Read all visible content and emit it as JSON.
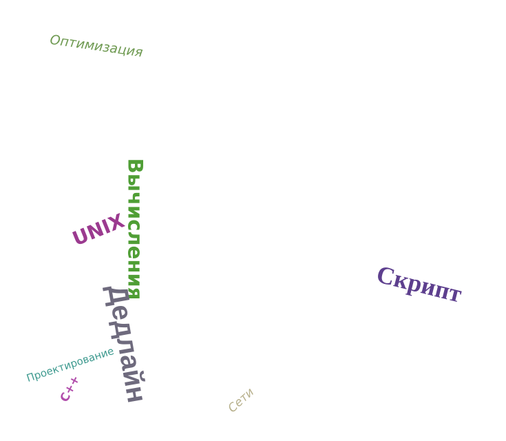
{
  "words": {
    "optimization": {
      "text": "Оптимизация",
      "color": "#6f9a52",
      "rotation_deg": 8
    },
    "computations": {
      "text": "Вычисления",
      "color": "#4f9e35",
      "rotation_deg": 90
    },
    "unix": {
      "text": "UNIX",
      "color": "#9b3a8f",
      "rotation_deg": -22
    },
    "deadline": {
      "text": "Дедлайн",
      "color": "#6e6a7d",
      "rotation_deg": 80
    },
    "design": {
      "text": "Проектирование",
      "color": "#3e9a8f",
      "rotation_deg": -18
    },
    "cpp": {
      "text": "C++",
      "color": "#b14dab",
      "rotation_deg": -62
    },
    "networks": {
      "text": "Сети",
      "color": "#b7b08c",
      "rotation_deg": -42
    },
    "script": {
      "text": "Скрипт",
      "color": "#5d3f8e",
      "rotation_deg": 14
    }
  }
}
